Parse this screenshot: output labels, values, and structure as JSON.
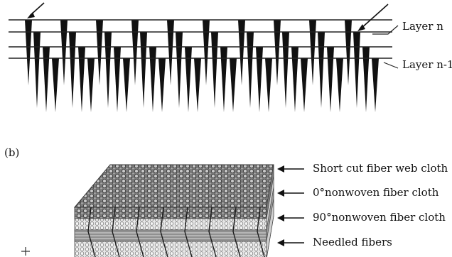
{
  "panel_b": {
    "label": "(b)",
    "labels": {
      "short_cut": "Short cut fiber web cloth",
      "nonwoven_0": "0°nonwoven fiber cloth",
      "nonwoven_90": "90°nonwoven fiber cloth",
      "needled": "Needled fibers"
    }
  },
  "panel_a": {
    "layer_labels": {
      "layer_n": "Layer n",
      "layer_n1": "Layer n-1"
    }
  },
  "colors": {
    "ink": "#111111",
    "cloth_top": "#8a8a8a",
    "cloth_dark": "#4a4a4a",
    "cloth_light": "#dcdcdc"
  }
}
